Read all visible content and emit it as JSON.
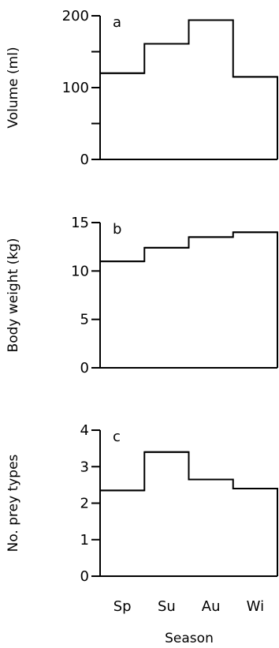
{
  "chart_data": {
    "type": "step",
    "xlabel": "Season",
    "categories": [
      "Sp",
      "Su",
      "Au",
      "Wi"
    ],
    "panels": [
      {
        "letter": "a",
        "ylabel": "Volume (ml)",
        "ylim": [
          0,
          200
        ],
        "yticks_major": [
          0,
          100,
          200
        ],
        "yticks_minor": [
          50,
          150
        ],
        "values": [
          120,
          161,
          194,
          115
        ]
      },
      {
        "letter": "b",
        "ylabel": "Body weight (kg)",
        "ylim": [
          0,
          15
        ],
        "yticks_major": [
          0,
          5,
          10,
          15
        ],
        "yticks_minor": [],
        "values": [
          11.0,
          12.4,
          13.5,
          14.0
        ]
      },
      {
        "letter": "c",
        "ylabel": "No. prey types",
        "ylim": [
          0,
          4
        ],
        "yticks_major": [
          0,
          1,
          2,
          3,
          4
        ],
        "yticks_minor": [],
        "values": [
          2.35,
          3.4,
          2.65,
          2.4
        ]
      }
    ]
  }
}
